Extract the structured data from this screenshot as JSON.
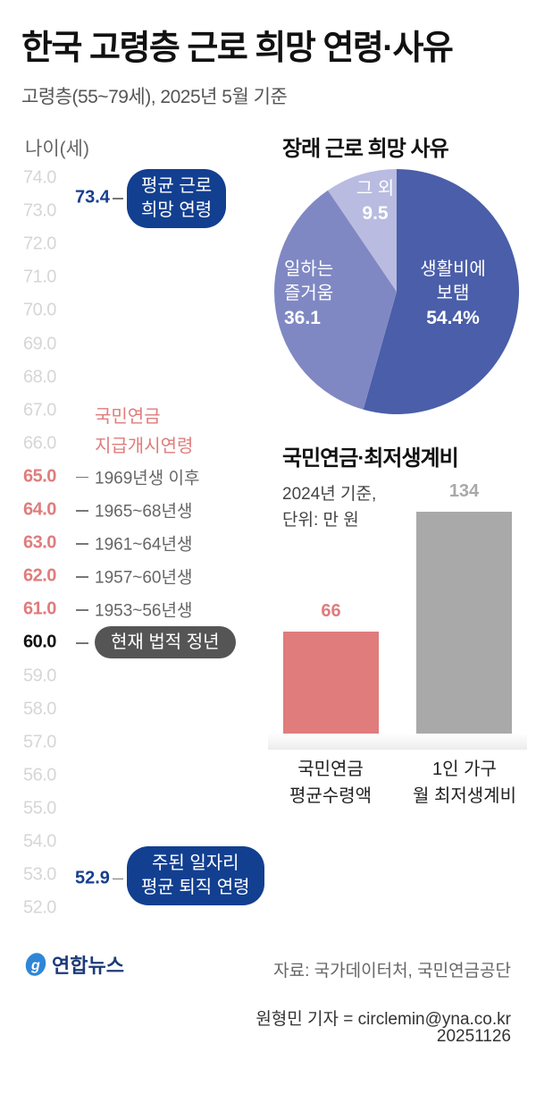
{
  "title": "한국 고령층 근로 희망 연령·사유",
  "subtitle": "고령층(55~79세), 2025년 5월 기준",
  "chart_data": [
    {
      "type": "table",
      "title": "나이 축",
      "ylabel": "나이(세)",
      "ylim": [
        52,
        74
      ],
      "ticks": [
        {
          "v": 74,
          "label": "74.0"
        },
        {
          "v": 73,
          "label": "73.0"
        },
        {
          "v": 72,
          "label": "72.0"
        },
        {
          "v": 71,
          "label": "71.0"
        },
        {
          "v": 70,
          "label": "70.0"
        },
        {
          "v": 69,
          "label": "69.0"
        },
        {
          "v": 68,
          "label": "68.0"
        },
        {
          "v": 67,
          "label": "67.0"
        },
        {
          "v": 66,
          "label": "66.0"
        },
        {
          "v": 65,
          "label": "65.0",
          "style": "pension"
        },
        {
          "v": 64,
          "label": "64.0",
          "style": "pension"
        },
        {
          "v": 63,
          "label": "63.0",
          "style": "pension"
        },
        {
          "v": 62,
          "label": "62.0",
          "style": "pension"
        },
        {
          "v": 61,
          "label": "61.0",
          "style": "pension"
        },
        {
          "v": 60,
          "label": "60.0",
          "style": "legal"
        },
        {
          "v": 59,
          "label": "59.0"
        },
        {
          "v": 58,
          "label": "58.0"
        },
        {
          "v": 57,
          "label": "57.0"
        },
        {
          "v": 56,
          "label": "56.0"
        },
        {
          "v": 55,
          "label": "55.0"
        },
        {
          "v": 54,
          "label": "54.0"
        },
        {
          "v": 53,
          "label": "53.0"
        },
        {
          "v": 52,
          "label": "52.0"
        }
      ],
      "markers": {
        "hope": {
          "value": 73.4,
          "label": "73.4",
          "line1": "평균 근로",
          "line2": "희망 연령"
        },
        "retire": {
          "value": 52.9,
          "label": "52.9",
          "line1": "주된 일자리",
          "line2": "평균 퇴직 연령"
        },
        "legal": {
          "value": 60,
          "text": "현재 법적 정년"
        }
      },
      "pension": {
        "heading1": "국민연금",
        "heading2": "지급개시연령",
        "rows": [
          {
            "value": 65,
            "text": "1969년생 이후"
          },
          {
            "value": 64,
            "text": "1965~68년생"
          },
          {
            "value": 63,
            "text": "1961~64년생"
          },
          {
            "value": 62,
            "text": "1957~60년생"
          },
          {
            "value": 61,
            "text": "1953~56년생"
          }
        ]
      }
    },
    {
      "type": "pie",
      "title": "장래 근로 희망 사유",
      "slices": [
        {
          "name1": "생활비에",
          "name2": "보탬",
          "value": 54.4,
          "label": "54.4%",
          "color": "#4a5ea9"
        },
        {
          "name1": "일하는",
          "name2": "즐거움",
          "value": 36.1,
          "label": "36.1",
          "color": "#8088c3"
        },
        {
          "name1": "그 외",
          "name2": "",
          "value": 9.5,
          "label": "9.5",
          "color": "#b9bbe0"
        }
      ]
    },
    {
      "type": "bar",
      "title": "국민연금·최저생계비",
      "note1": "2024년 기준,",
      "note2": "단위: 만 원",
      "ylim": [
        0,
        134
      ],
      "bars": [
        {
          "cat1": "국민연금",
          "cat2": "평균수령액",
          "value": 66,
          "label": "66",
          "color": "#e07c7c"
        },
        {
          "cat1": "1인 가구",
          "cat2": "월 최저생계비",
          "value": 134,
          "label": "134",
          "color": "#a9a9a9"
        }
      ]
    }
  ],
  "footer": {
    "logo": "연합뉴스",
    "source": "자료: 국가데이터처, 국민연금공단",
    "reporter": "원형민 기자 = circlemin@yna.co.kr",
    "date": "20251126"
  }
}
